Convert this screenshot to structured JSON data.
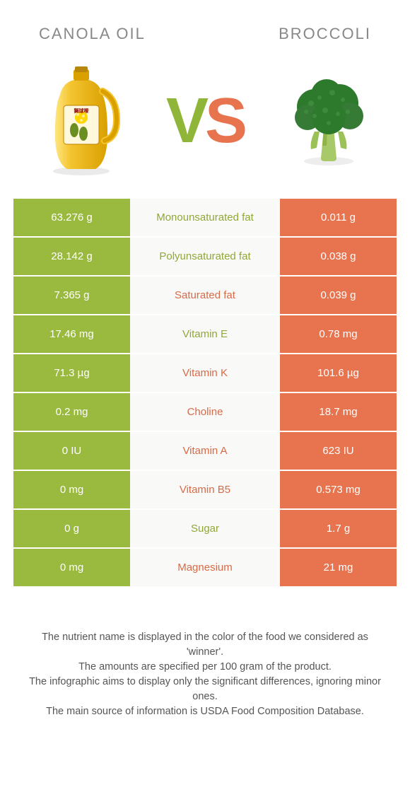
{
  "colors": {
    "left": "#9ab93f",
    "right": "#e8744f",
    "left_text": "#8fa838",
    "right_text": "#d96a47",
    "row_alt_bg": "#f9f9f7",
    "footer_text": "#555555"
  },
  "header": {
    "left": "CANOLA OIL",
    "right": "BROCCOLI"
  },
  "vs": {
    "v": "V",
    "s": "S"
  },
  "rows": [
    {
      "left": "63.276 g",
      "label": "Monounsaturated fat",
      "right": "0.011 g",
      "winner": "left"
    },
    {
      "left": "28.142 g",
      "label": "Polyunsaturated fat",
      "right": "0.038 g",
      "winner": "left"
    },
    {
      "left": "7.365 g",
      "label": "Saturated fat",
      "right": "0.039 g",
      "winner": "right"
    },
    {
      "left": "17.46 mg",
      "label": "Vitamin E",
      "right": "0.78 mg",
      "winner": "left"
    },
    {
      "left": "71.3 µg",
      "label": "Vitamin K",
      "right": "101.6 µg",
      "winner": "right"
    },
    {
      "left": "0.2 mg",
      "label": "Choline",
      "right": "18.7 mg",
      "winner": "right"
    },
    {
      "left": "0 IU",
      "label": "Vitamin A",
      "right": "623 IU",
      "winner": "right"
    },
    {
      "left": "0 mg",
      "label": "Vitamin B5",
      "right": "0.573 mg",
      "winner": "right"
    },
    {
      "left": "0 g",
      "label": "Sugar",
      "right": "1.7 g",
      "winner": "left"
    },
    {
      "left": "0 mg",
      "label": "Magnesium",
      "right": "21 mg",
      "winner": "right"
    }
  ],
  "footer": {
    "line1": "The nutrient name is displayed in the color of the food we considered as 'winner'.",
    "line2": "The amounts are specified per 100 gram of the product.",
    "line3": "The infographic aims to display only the significant differences, ignoring minor ones.",
    "line4": "The main source of information is USDA Food Composition Database."
  }
}
